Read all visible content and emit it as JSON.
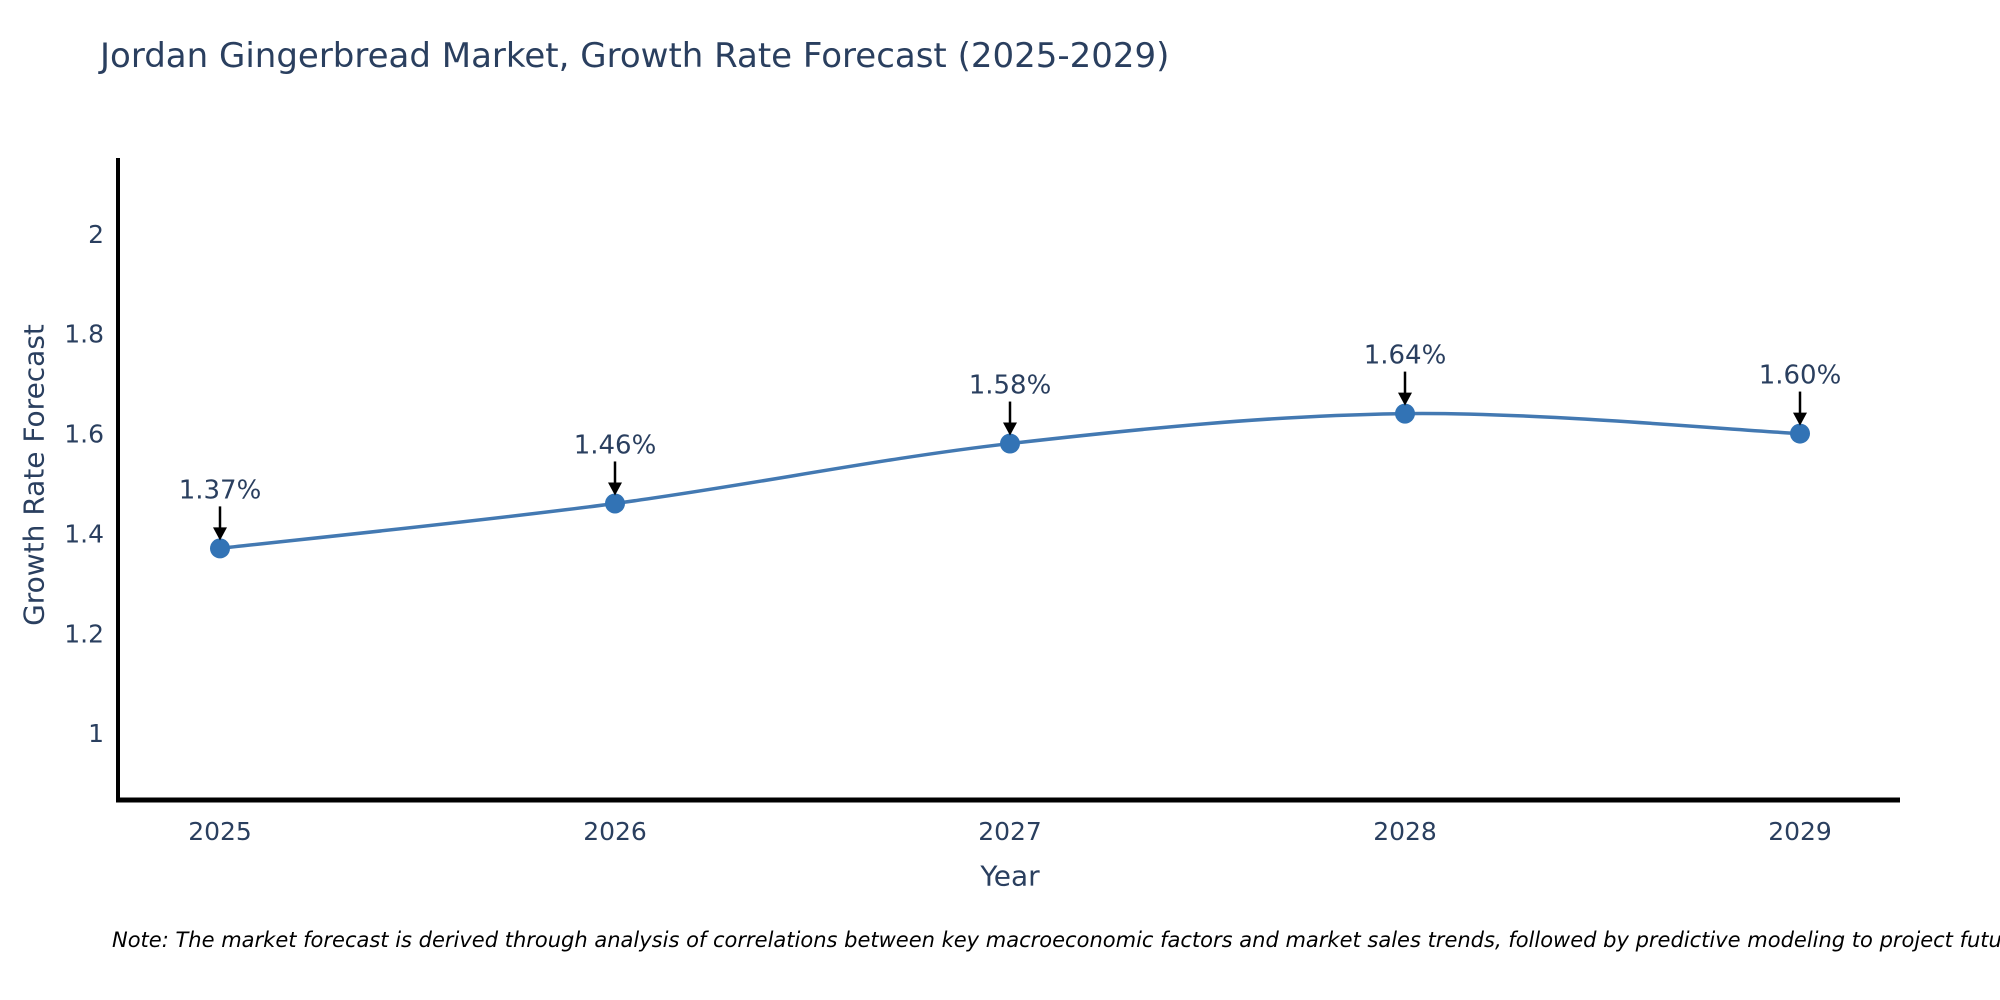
{
  "title": "Jordan Gingerbread Market, Growth Rate Forecast (2025-2029)",
  "note": "Note: The market forecast is derived through analysis of correlations between key macroeconomic factors and market sales trends, followed by predictive modeling to project future sales",
  "chart_data": {
    "type": "line",
    "title": "Jordan Gingerbread Market, Growth Rate Forecast (2025-2029)",
    "xlabel": "Year",
    "ylabel": "Growth Rate Forecast",
    "x": [
      "2025",
      "2026",
      "2027",
      "2028",
      "2029"
    ],
    "y": [
      1.37,
      1.46,
      1.58,
      1.64,
      1.6
    ],
    "point_labels": [
      "1.37%",
      "1.46%",
      "1.58%",
      "1.64%",
      "1.60%"
    ],
    "yticks": [
      1,
      1.2,
      1.4,
      1.6,
      1.8,
      2
    ],
    "ylim": [
      0.866,
      2.152
    ],
    "grid": false,
    "legend": "none",
    "line_shape": "spline",
    "colors": {
      "line": "#4379b2",
      "marker": "#3273b5",
      "arrow": "#000000",
      "text": "#2a3f5f",
      "axis": "#000000",
      "note_text": "#000000",
      "background": "#ffffff"
    }
  }
}
